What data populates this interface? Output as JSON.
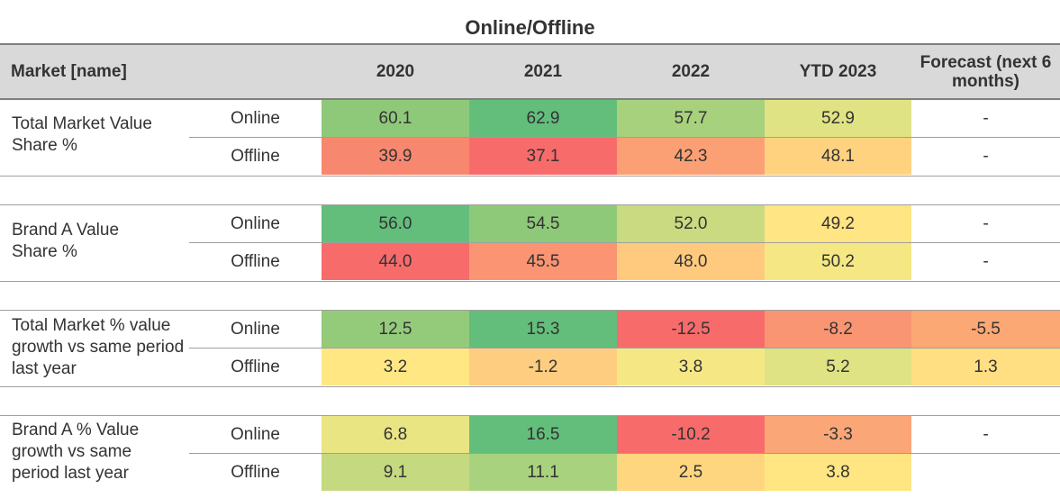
{
  "title": "Online/Offline",
  "headers": [
    "Market [name]",
    "2020",
    "2021",
    "2022",
    "YTD 2023",
    "Forecast (next 6 months)"
  ],
  "chart_data": {
    "type": "table",
    "columns": [
      "2020",
      "2021",
      "2022",
      "YTD 2023",
      "Forecast (next 6 months)"
    ],
    "groups": [
      {
        "label": "Total Market Value Share %",
        "rows": [
          {
            "label": "Online",
            "values": [
              "60.1",
              "62.9",
              "57.7",
              "52.9",
              "-"
            ],
            "colors": [
              "#8ec97a",
              "#63be7b",
              "#a8d17e",
              "#e0e383",
              "#ffffff"
            ]
          },
          {
            "label": "Offline",
            "values": [
              "39.9",
              "37.1",
              "42.3",
              "48.1",
              "-"
            ],
            "colors": [
              "#f8876f",
              "#f86b6b",
              "#fba074",
              "#ffd27f",
              "#ffffff"
            ]
          }
        ]
      },
      {
        "label": "Brand A Value Share %",
        "rows": [
          {
            "label": "Online",
            "values": [
              "56.0",
              "54.5",
              "52.0",
              "49.2",
              "-"
            ],
            "colors": [
              "#63be7b",
              "#8ec97a",
              "#c9da81",
              "#ffe583",
              "#ffffff"
            ]
          },
          {
            "label": "Offline",
            "values": [
              "44.0",
              "45.5",
              "48.0",
              "50.2",
              "-"
            ],
            "colors": [
              "#f86b6b",
              "#fa9473",
              "#ffca7e",
              "#f5e884",
              "#ffffff"
            ]
          }
        ]
      },
      {
        "label": "Total Market % value growth vs same period last year",
        "rows": [
          {
            "label": "Online",
            "values": [
              "12.5",
              "15.3",
              "-12.5",
              "-8.2",
              "-5.5"
            ],
            "colors": [
              "#94cb7b",
              "#63be7b",
              "#f86b6b",
              "#f99572",
              "#fba874"
            ]
          },
          {
            "label": "Offline",
            "values": [
              "3.2",
              "-1.2",
              "3.8",
              "5.2",
              "1.3"
            ],
            "colors": [
              "#ffe784",
              "#ffcd7f",
              "#f5e884",
              "#dfe383",
              "#ffdf82"
            ]
          }
        ]
      },
      {
        "label": "Brand A % Value growth vs same period last year",
        "rows": [
          {
            "label": "Online",
            "values": [
              "6.8",
              "16.5",
              "-10.2",
              "-3.3",
              "-"
            ],
            "colors": [
              "#eae583",
              "#63be7b",
              "#f86b6b",
              "#fba676",
              "#ffffff"
            ]
          },
          {
            "label": "Offline",
            "values": [
              "9.1",
              "11.1",
              "2.5",
              "3.8",
              ""
            ],
            "colors": [
              "#c5d980",
              "#a9d27f",
              "#ffd680",
              "#ffe683",
              "#ffffff"
            ]
          }
        ]
      }
    ]
  }
}
